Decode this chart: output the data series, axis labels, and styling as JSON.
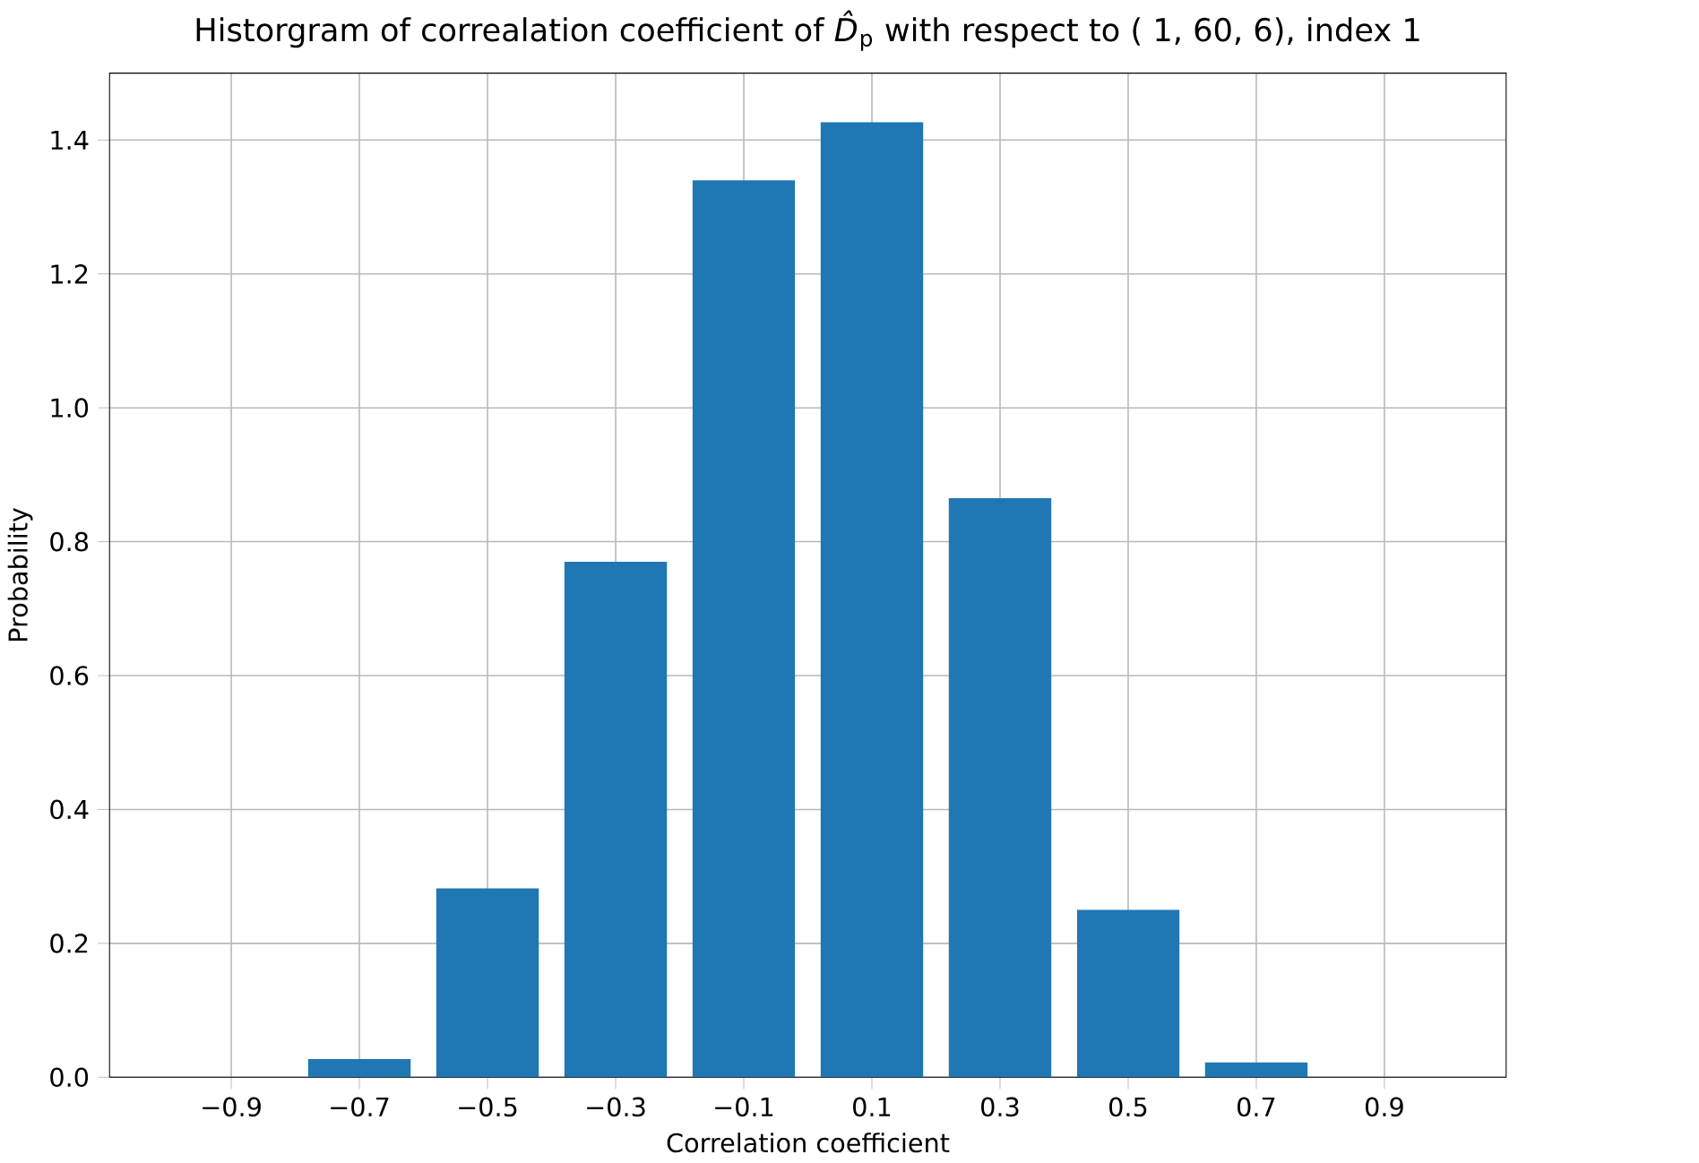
{
  "chart_data": {
    "type": "histogram",
    "title": "Historgram of correalation coefficient of *D̂*$_{p}$ with respect to (  1, 60,  6), index 1",
    "xlabel": "Correlation coefficient",
    "ylabel": "Probability",
    "bins": [
      -1.0,
      -0.8,
      -0.6,
      -0.4,
      -0.2,
      0.0,
      0.2,
      0.4,
      0.6,
      0.8,
      1.0
    ],
    "values": [
      0,
      0.027,
      0.282,
      0.77,
      1.34,
      1.427,
      0.865,
      0.25,
      0.022,
      0
    ],
    "color": "#1f77b4",
    "xlim": [
      -1.09,
      1.09
    ],
    "ylim": [
      0,
      1.5
    ],
    "xticks": [
      {
        "value": -0.9,
        "label": "−0.9"
      },
      {
        "value": -0.7,
        "label": "−0.7"
      },
      {
        "value": -0.5,
        "label": "−0.5"
      },
      {
        "value": -0.3,
        "label": "−0.3"
      },
      {
        "value": -0.1,
        "label": "−0.1"
      },
      0.1,
      0.3,
      0.5,
      0.7,
      0.9
    ],
    "yticks": [
      {
        "value": 0,
        "label": "0.0"
      },
      0.2,
      0.4,
      0.6,
      0.8,
      {
        "value": 1,
        "label": "1.0"
      },
      1.2,
      1.4
    ],
    "grid": true
  }
}
